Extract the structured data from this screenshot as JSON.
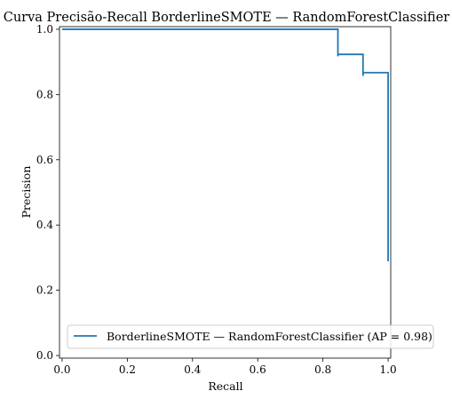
{
  "chart_data": {
    "type": "line",
    "title": "Curva Precisão-Recall BorderlineSMOTE — RandomForestClassifier",
    "xlabel": "Recall",
    "ylabel": "Precision",
    "xlim": [
      -0.008,
      1.008
    ],
    "ylim": [
      -0.008,
      1.008
    ],
    "x_ticks": [
      0.0,
      0.2,
      0.4,
      0.6,
      0.8,
      1.0
    ],
    "x_tick_labels": [
      "0.0",
      "0.2",
      "0.4",
      "0.6",
      "0.8",
      "1.0"
    ],
    "y_ticks": [
      0.0,
      0.2,
      0.4,
      0.6,
      0.8,
      1.0
    ],
    "y_tick_labels": [
      "0.0",
      "0.2",
      "0.4",
      "0.6",
      "0.8",
      "1.0"
    ],
    "grid": false,
    "legend_position": "lower-right",
    "series": [
      {
        "name": "BorderlineSMOTE — RandomForestClassifier (AP = 0.98)",
        "color": "#1f77b4",
        "drawstyle": "steps-post",
        "points": [
          {
            "x": 0.0,
            "y": 1.0
          },
          {
            "x": 0.846,
            "y": 1.0
          },
          {
            "x": 0.846,
            "y": 0.917
          },
          {
            "x": 0.846,
            "y": 0.923
          },
          {
            "x": 0.923,
            "y": 0.923
          },
          {
            "x": 0.923,
            "y": 0.857
          },
          {
            "x": 0.923,
            "y": 0.867
          },
          {
            "x": 1.0,
            "y": 0.867
          },
          {
            "x": 1.0,
            "y": 0.289
          }
        ]
      }
    ]
  }
}
